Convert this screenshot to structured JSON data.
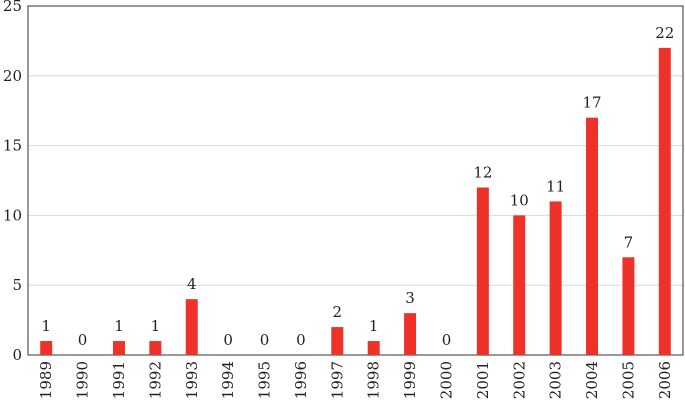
{
  "chart_data": {
    "type": "bar",
    "categories": [
      "1989",
      "1990",
      "1991",
      "1992",
      "1993",
      "1994",
      "1995",
      "1996",
      "1997",
      "1998",
      "1999",
      "2000",
      "2001",
      "2002",
      "2003",
      "2004",
      "2005",
      "2006"
    ],
    "values": [
      1,
      0,
      1,
      1,
      4,
      0,
      0,
      0,
      2,
      1,
      3,
      0,
      12,
      10,
      11,
      17,
      7,
      22
    ],
    "color": "#ee3129",
    "ylim": [
      0,
      25
    ],
    "yticks": [
      0,
      5,
      10,
      15,
      20,
      25
    ],
    "grid": true
  }
}
